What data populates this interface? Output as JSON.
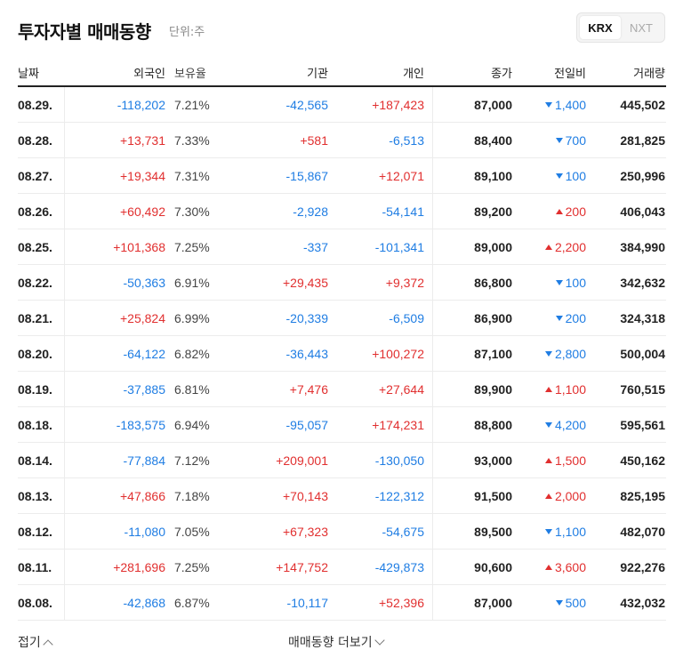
{
  "header": {
    "title": "투자자별 매매동향",
    "unit": "단위:주",
    "markets": [
      "KRX",
      "NXT"
    ],
    "active_market": "KRX"
  },
  "columns": {
    "date": "날짜",
    "foreign": "외국인",
    "ratio": "보유율",
    "institution": "기관",
    "individual": "개인",
    "close": "종가",
    "change": "전일비",
    "volume": "거래량"
  },
  "rows": [
    {
      "date": "08.29.",
      "foreign": "-118,202",
      "ratio": "7.21%",
      "institution": "-42,565",
      "individual": "+187,423",
      "close": "87,000",
      "change": "1,400",
      "change_dir": "down",
      "volume": "445,502"
    },
    {
      "date": "08.28.",
      "foreign": "+13,731",
      "ratio": "7.33%",
      "institution": "+581",
      "individual": "-6,513",
      "close": "88,400",
      "change": "700",
      "change_dir": "down",
      "volume": "281,825"
    },
    {
      "date": "08.27.",
      "foreign": "+19,344",
      "ratio": "7.31%",
      "institution": "-15,867",
      "individual": "+12,071",
      "close": "89,100",
      "change": "100",
      "change_dir": "down",
      "volume": "250,996"
    },
    {
      "date": "08.26.",
      "foreign": "+60,492",
      "ratio": "7.30%",
      "institution": "-2,928",
      "individual": "-54,141",
      "close": "89,200",
      "change": "200",
      "change_dir": "up",
      "volume": "406,043"
    },
    {
      "date": "08.25.",
      "foreign": "+101,368",
      "ratio": "7.25%",
      "institution": "-337",
      "individual": "-101,341",
      "close": "89,000",
      "change": "2,200",
      "change_dir": "up",
      "volume": "384,990"
    },
    {
      "date": "08.22.",
      "foreign": "-50,363",
      "ratio": "6.91%",
      "institution": "+29,435",
      "individual": "+9,372",
      "close": "86,800",
      "change": "100",
      "change_dir": "down",
      "volume": "342,632"
    },
    {
      "date": "08.21.",
      "foreign": "+25,824",
      "ratio": "6.99%",
      "institution": "-20,339",
      "individual": "-6,509",
      "close": "86,900",
      "change": "200",
      "change_dir": "down",
      "volume": "324,318"
    },
    {
      "date": "08.20.",
      "foreign": "-64,122",
      "ratio": "6.82%",
      "institution": "-36,443",
      "individual": "+100,272",
      "close": "87,100",
      "change": "2,800",
      "change_dir": "down",
      "volume": "500,004"
    },
    {
      "date": "08.19.",
      "foreign": "-37,885",
      "ratio": "6.81%",
      "institution": "+7,476",
      "individual": "+27,644",
      "close": "89,900",
      "change": "1,100",
      "change_dir": "up",
      "volume": "760,515"
    },
    {
      "date": "08.18.",
      "foreign": "-183,575",
      "ratio": "6.94%",
      "institution": "-95,057",
      "individual": "+174,231",
      "close": "88,800",
      "change": "4,200",
      "change_dir": "down",
      "volume": "595,561"
    },
    {
      "date": "08.14.",
      "foreign": "-77,884",
      "ratio": "7.12%",
      "institution": "+209,001",
      "individual": "-130,050",
      "close": "93,000",
      "change": "1,500",
      "change_dir": "up",
      "volume": "450,162"
    },
    {
      "date": "08.13.",
      "foreign": "+47,866",
      "ratio": "7.18%",
      "institution": "+70,143",
      "individual": "-122,312",
      "close": "91,500",
      "change": "2,000",
      "change_dir": "up",
      "volume": "825,195"
    },
    {
      "date": "08.12.",
      "foreign": "-11,080",
      "ratio": "7.05%",
      "institution": "+67,323",
      "individual": "-54,675",
      "close": "89,500",
      "change": "1,100",
      "change_dir": "down",
      "volume": "482,070"
    },
    {
      "date": "08.11.",
      "foreign": "+281,696",
      "ratio": "7.25%",
      "institution": "+147,752",
      "individual": "-429,873",
      "close": "90,600",
      "change": "3,600",
      "change_dir": "up",
      "volume": "922,276"
    },
    {
      "date": "08.08.",
      "foreign": "-42,868",
      "ratio": "6.87%",
      "institution": "-10,117",
      "individual": "+52,396",
      "close": "87,000",
      "change": "500",
      "change_dir": "down",
      "volume": "432,032"
    }
  ],
  "footer": {
    "fold_label": "접기",
    "more_label": "매매동향 더보기"
  },
  "colors": {
    "up": "#e12f2f",
    "down": "#1f7de3"
  },
  "icons": {
    "fold": "chevron-up-icon",
    "more": "chevron-down-icon",
    "up_change": "triangle-up-icon",
    "down_change": "triangle-down-icon"
  }
}
